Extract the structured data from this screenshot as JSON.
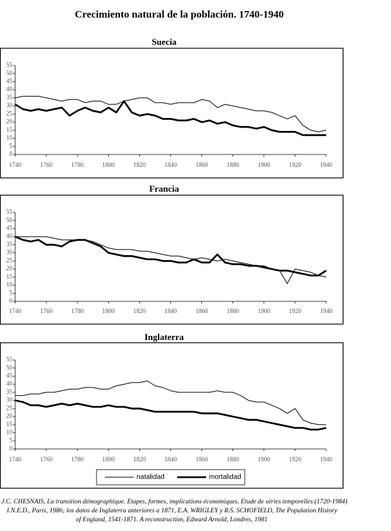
{
  "title": "Crecimiento natural de la población. 1740-1940",
  "chart_data": [
    {
      "type": "line",
      "title": "Suecia",
      "x": [
        1740,
        1745,
        1750,
        1755,
        1760,
        1765,
        1770,
        1775,
        1780,
        1785,
        1790,
        1795,
        1800,
        1805,
        1810,
        1815,
        1820,
        1825,
        1830,
        1835,
        1840,
        1845,
        1850,
        1855,
        1860,
        1865,
        1870,
        1875,
        1880,
        1885,
        1890,
        1895,
        1900,
        1905,
        1910,
        1915,
        1920,
        1925,
        1930,
        1935,
        1940
      ],
      "series": [
        {
          "color": "#000000",
          "values": [
            35,
            36,
            36,
            36,
            35,
            34,
            33,
            34,
            34,
            32,
            33,
            33,
            31,
            31,
            33,
            34,
            35,
            35,
            32,
            32,
            31,
            32,
            32,
            32,
            34,
            33,
            29,
            31,
            30,
            29,
            28,
            27,
            27,
            26,
            24,
            22,
            24,
            18,
            15,
            14,
            15
          ]
        },
        {
          "color": "#000000",
          "values": [
            31,
            28,
            27,
            28,
            27,
            28,
            29,
            24,
            27,
            29,
            27,
            26,
            29,
            26,
            33,
            26,
            24,
            25,
            24,
            22,
            22,
            21,
            21,
            22,
            20,
            21,
            19,
            20,
            18,
            17,
            17,
            16,
            17,
            15,
            14,
            14,
            14,
            12,
            12,
            12,
            12
          ]
        }
      ],
      "xlim": [
        1740,
        1940
      ],
      "xticks": [
        1740,
        1760,
        1780,
        1800,
        1820,
        1840,
        1860,
        1880,
        1900,
        1920,
        1940
      ],
      "ylim": [
        0,
        55
      ],
      "yticks": [
        0,
        5,
        10,
        15,
        20,
        25,
        30,
        35,
        40,
        45,
        50,
        55
      ]
    },
    {
      "type": "line",
      "title": "Francia",
      "x": [
        1740,
        1745,
        1750,
        1755,
        1760,
        1765,
        1770,
        1775,
        1780,
        1785,
        1790,
        1795,
        1800,
        1805,
        1810,
        1815,
        1820,
        1825,
        1830,
        1835,
        1840,
        1845,
        1850,
        1855,
        1860,
        1865,
        1870,
        1875,
        1880,
        1885,
        1890,
        1895,
        1900,
        1905,
        1910,
        1915,
        1920,
        1925,
        1930,
        1935,
        1940
      ],
      "series": [
        {
          "color": "#000000",
          "values": [
            40,
            40,
            40,
            40,
            40,
            39,
            38,
            38,
            38,
            38,
            37,
            35,
            33,
            32,
            32,
            32,
            31,
            31,
            30,
            29,
            28,
            28,
            27,
            26,
            27,
            26,
            25,
            26,
            25,
            24,
            23,
            22,
            22,
            20,
            19,
            11,
            20,
            19,
            18,
            16,
            15
          ]
        },
        {
          "color": "#000000",
          "values": [
            40,
            38,
            37,
            38,
            35,
            35,
            34,
            37,
            38,
            38,
            36,
            34,
            30,
            29,
            28,
            28,
            27,
            26,
            26,
            25,
            25,
            24,
            24,
            26,
            24,
            24,
            29,
            24,
            23,
            23,
            22,
            22,
            21,
            20,
            19,
            19,
            18,
            17,
            16,
            16,
            19
          ]
        }
      ],
      "xlim": [
        1740,
        1940
      ],
      "xticks": [
        1740,
        1760,
        1780,
        1800,
        1820,
        1840,
        1860,
        1880,
        1900,
        1920,
        1940
      ],
      "ylim": [
        0,
        55
      ],
      "yticks": [
        0,
        5,
        10,
        15,
        20,
        25,
        30,
        35,
        40,
        45,
        50,
        55
      ]
    },
    {
      "type": "line",
      "title": "Inglaterra",
      "x": [
        1740,
        1745,
        1750,
        1755,
        1760,
        1765,
        1770,
        1775,
        1780,
        1785,
        1790,
        1795,
        1800,
        1805,
        1810,
        1815,
        1820,
        1825,
        1830,
        1835,
        1840,
        1845,
        1850,
        1855,
        1860,
        1865,
        1870,
        1875,
        1880,
        1885,
        1890,
        1895,
        1900,
        1905,
        1910,
        1915,
        1920,
        1925,
        1930,
        1935,
        1940
      ],
      "series": [
        {
          "name": "natalidad",
          "color": "#000000",
          "values": [
            33,
            33,
            34,
            34,
            35,
            35,
            36,
            37,
            37,
            38,
            38,
            37,
            37,
            39,
            40,
            41,
            41,
            42,
            39,
            38,
            36,
            35,
            35,
            35,
            35,
            35,
            36,
            35,
            35,
            33,
            30,
            29,
            29,
            27,
            25,
            22,
            25,
            18,
            16,
            15,
            15
          ]
        },
        {
          "name": "mortalidad",
          "color": "#000000",
          "values": [
            30,
            29,
            27,
            27,
            26,
            27,
            28,
            27,
            28,
            27,
            26,
            26,
            27,
            26,
            26,
            25,
            25,
            24,
            23,
            23,
            23,
            23,
            23,
            23,
            22,
            22,
            22,
            21,
            20,
            19,
            18,
            18,
            17,
            16,
            15,
            14,
            13,
            13,
            12,
            12,
            13
          ]
        }
      ],
      "xlim": [
        1740,
        1940
      ],
      "xticks": [
        1740,
        1760,
        1780,
        1800,
        1820,
        1840,
        1860,
        1880,
        1900,
        1920,
        1940
      ],
      "ylim": [
        0,
        55
      ],
      "yticks": [
        0,
        5,
        10,
        15,
        20,
        25,
        30,
        35,
        40,
        45,
        50,
        55
      ],
      "legend": "bottom"
    }
  ],
  "source": [
    "J.C. CHESNAIS, La transition démographique. Etapes, formes, implications économiques. Etude de séries temporelles (1720-1984)",
    "I.N.E.D., París, 1986; los datos de Inglaterra anteriores a 1871, E.A. WRIGLEY y R.S. SCHOFIELD, The Population History",
    "of England, 1541-1871. A reconstruction, Edward Arnold, Londres, 1981"
  ]
}
